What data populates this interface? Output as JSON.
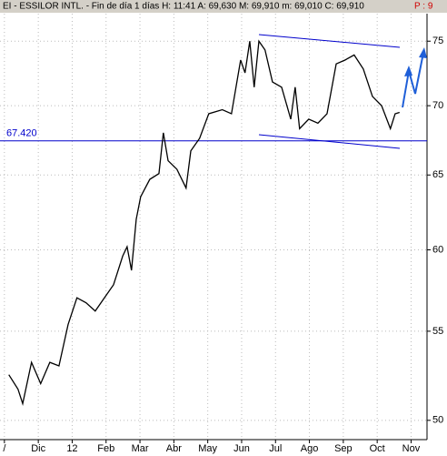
{
  "chart_data": {
    "type": "line",
    "title": "EI - ESSILOR INTL. - Fin de día 1 días H: 11:41 A: 69,630 M: 69,910 m: 69,010 C: 69,910",
    "indicator": "P : 9",
    "log_y": true,
    "grid": true,
    "xlim": [
      -0.13,
      12.47
    ],
    "xticks": [
      {
        "value": 0,
        "label": "/"
      },
      {
        "value": 1,
        "label": "Dic"
      },
      {
        "value": 2,
        "label": "12"
      },
      {
        "value": 3,
        "label": "Feb"
      },
      {
        "value": 4,
        "label": "Mar"
      },
      {
        "value": 5,
        "label": "Abr"
      },
      {
        "value": 6,
        "label": "May"
      },
      {
        "value": 7,
        "label": "Jun"
      },
      {
        "value": 8,
        "label": "Jul"
      },
      {
        "value": 9,
        "label": "Ago"
      },
      {
        "value": 10,
        "label": "Sep"
      },
      {
        "value": 11,
        "label": "Oct"
      },
      {
        "value": 12,
        "label": "Nov"
      }
    ],
    "ylim": [
      48.98,
      77.24
    ],
    "yticks": [
      50,
      55,
      60,
      65,
      70,
      75
    ],
    "reference_line": {
      "value": 67.42,
      "label": "67.420",
      "color": "#0000cc"
    },
    "series": [
      {
        "color": "#000000",
        "x": [
          0.13,
          0.4,
          0.54,
          0.8,
          1.07,
          1.34,
          1.61,
          1.88,
          2.14,
          2.41,
          2.68,
          2.95,
          3.22,
          3.49,
          3.62,
          3.75,
          3.89,
          4.02,
          4.29,
          4.56,
          4.69,
          4.83,
          5.09,
          5.36,
          5.5,
          5.76,
          6.03,
          6.43,
          6.7,
          6.97,
          7.1,
          7.24,
          7.37,
          7.51,
          7.69,
          7.91,
          8.18,
          8.45,
          8.58,
          8.71,
          8.98,
          9.25,
          9.52,
          9.79,
          10.05,
          10.32,
          10.59,
          10.86,
          11.13,
          11.39,
          11.53,
          11.66
        ],
        "values": [
          52.5,
          51.7,
          50.9,
          53.2,
          52.0,
          53.2,
          53.0,
          55.4,
          57.0,
          56.7,
          56.2,
          57.0,
          57.8,
          59.6,
          60.2,
          58.7,
          62.0,
          63.5,
          64.7,
          65.1,
          68.0,
          66.0,
          65.4,
          64.1,
          66.7,
          67.6,
          69.4,
          69.7,
          69.4,
          73.5,
          72.5,
          75.0,
          71.4,
          75.0,
          74.3,
          71.8,
          71.4,
          69.0,
          71.4,
          68.3,
          69.0,
          68.7,
          69.4,
          73.2,
          73.5,
          73.9,
          72.8,
          70.7,
          70.0,
          68.3,
          69.4,
          69.5
        ]
      }
    ]
  }
}
